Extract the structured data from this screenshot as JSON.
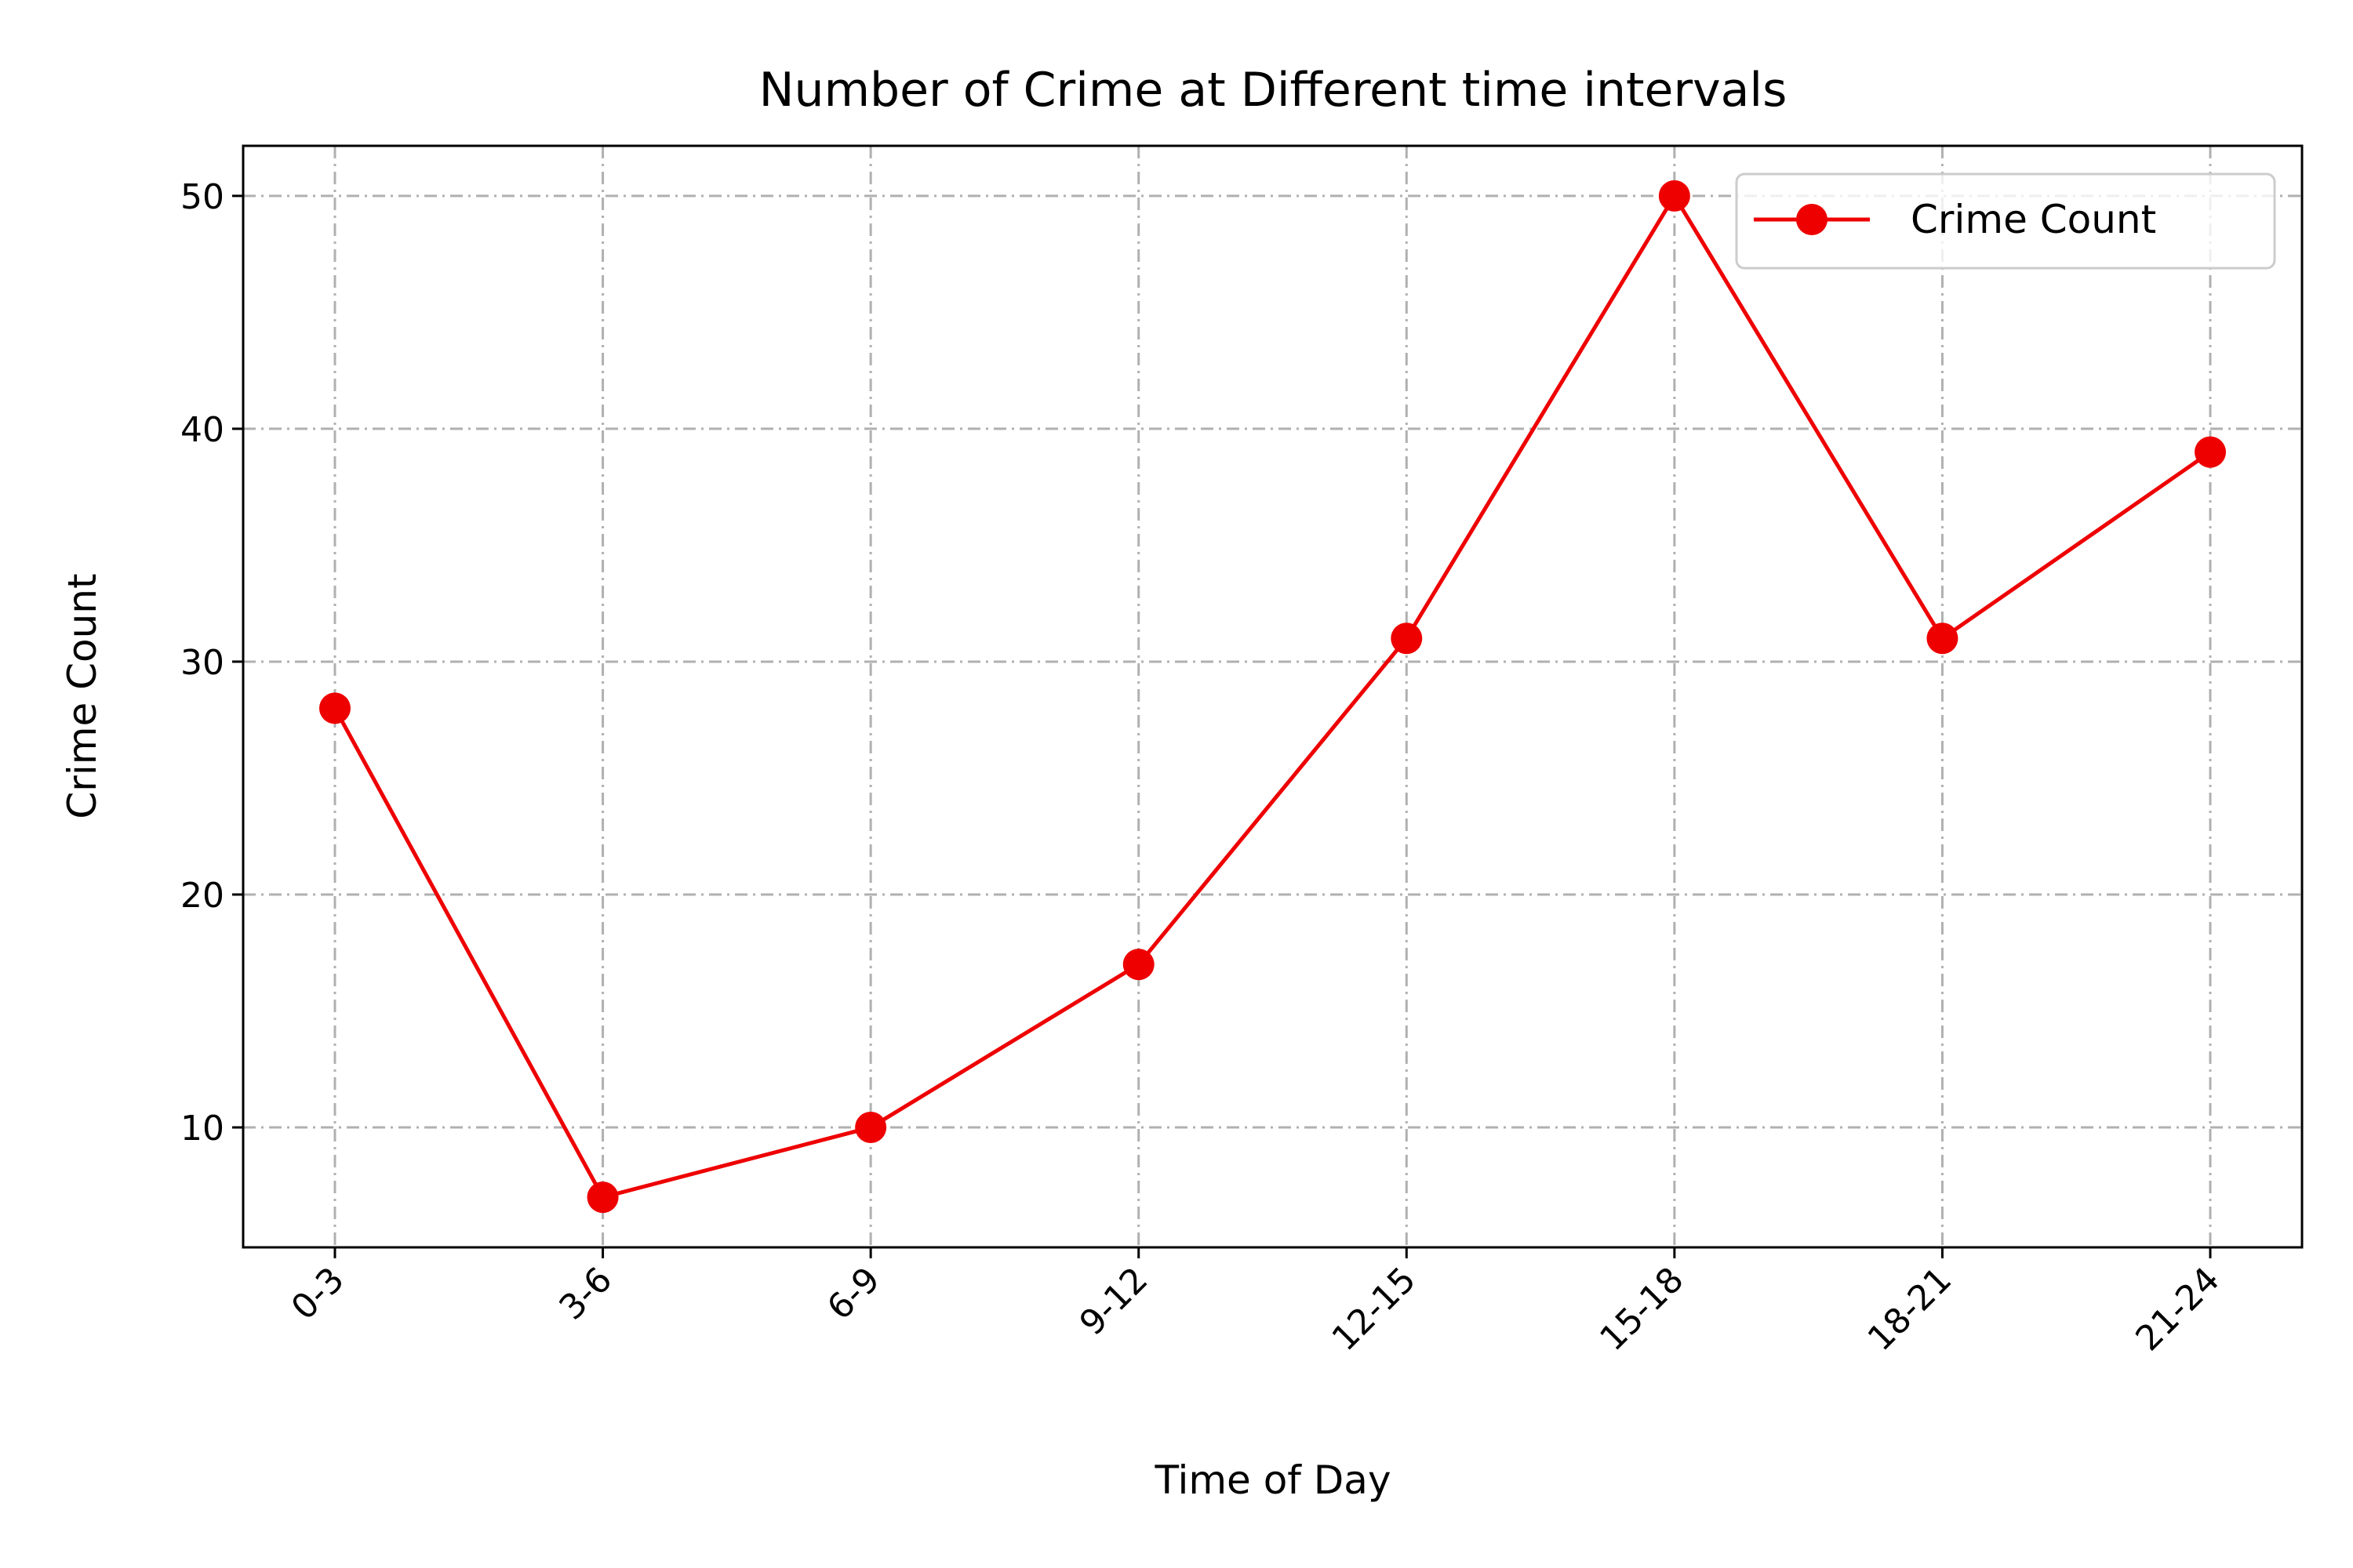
{
  "chart_data": {
    "type": "line",
    "title": "Number of Crime at Different time intervals",
    "xlabel": "Time of Day",
    "ylabel": "Crime Count",
    "categories": [
      "0-3",
      "3-6",
      "6-9",
      "9-12",
      "12-15",
      "15-18",
      "18-21",
      "21-24"
    ],
    "series": [
      {
        "name": "Crime Count",
        "values": [
          28,
          7,
          10,
          17,
          31,
          50,
          31,
          39
        ],
        "color": "#ee0000"
      }
    ],
    "yticks": [
      "10",
      "20",
      "30",
      "40",
      "50"
    ],
    "ylim": [
      4.85,
      52.15
    ],
    "grid": true,
    "legend_position": "top-right",
    "xtick_rotation": 45
  }
}
